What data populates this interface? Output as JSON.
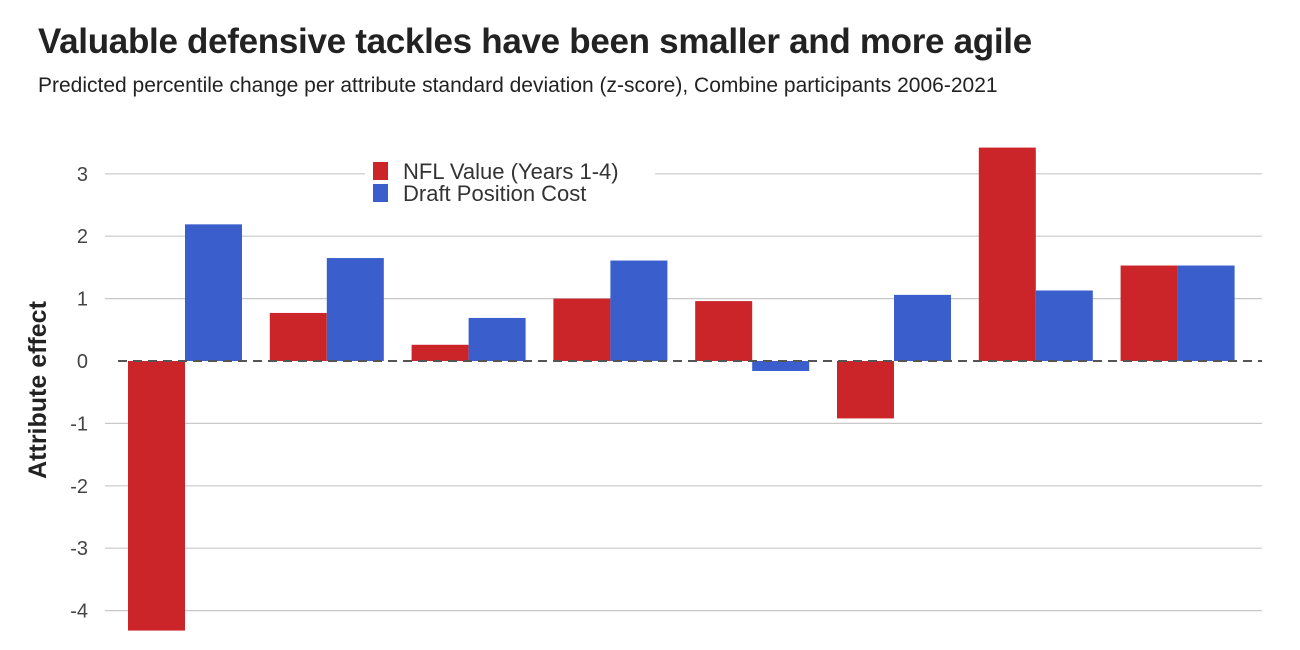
{
  "title": "Valuable defensive tackles have been smaller and more agile",
  "subtitle": "Predicted percentile change per attribute standard deviation (z-score), Combine participants 2006-2021",
  "chart_data": {
    "type": "bar",
    "title": "Valuable defensive tackles have been smaller and more agile",
    "subtitle": "Predicted percentile change per attribute standard deviation (z-score), Combine participants 2006-2021",
    "xlabel": "",
    "ylabel": "Attribute effect",
    "ylim": [
      -4.3,
      3.5
    ],
    "yticks": [
      "3",
      "2",
      "1",
      "0",
      "-1",
      "-2",
      "-3",
      "-4"
    ],
    "grid": true,
    "legend_placement": "top-center",
    "series": [
      {
        "name": "NFL Value (Years 1-4)",
        "color": "#cc2529",
        "values": [
          -4.32,
          0.77,
          0.26,
          1.0,
          0.96,
          -0.92,
          3.42,
          1.53
        ]
      },
      {
        "name": "Draft Position Cost",
        "color": "#3a5fcd",
        "values": [
          2.19,
          1.65,
          0.69,
          1.61,
          -0.16,
          1.06,
          1.13,
          1.53
        ]
      }
    ]
  }
}
